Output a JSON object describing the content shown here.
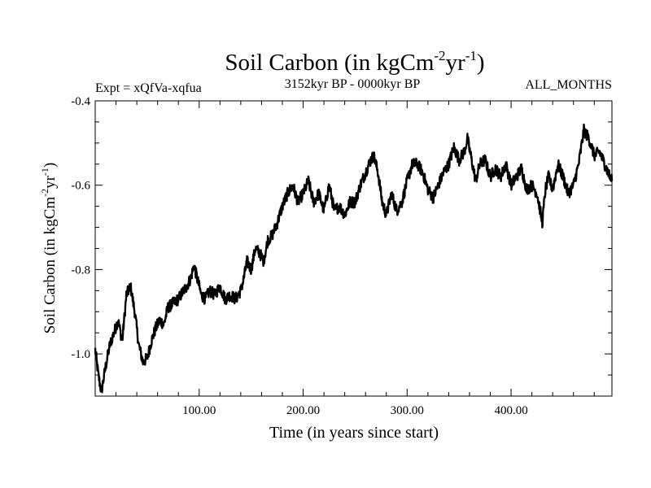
{
  "header": {
    "title_main": "Soil Carbon (in kgCm",
    "title_sup1": "-2",
    "title_mid": "yr",
    "title_sup2": "-1",
    "title_close": ")",
    "expt": "Expt = xQfVa-xqfua",
    "period": "3152kyr BP - 0000kyr BP",
    "months": "ALL_MONTHS"
  },
  "chart_data": {
    "type": "line",
    "title": "Soil Carbon (in kgCm-2yr-1)",
    "xlabel": "Time (in years since start)",
    "ylabel": "Soil Carbon (in kgCm-2yr-1)",
    "xlim": [
      0,
      497
    ],
    "ylim": [
      -1.1,
      -0.4
    ],
    "x_ticks": [
      100,
      200,
      300,
      400
    ],
    "x_tick_labels": [
      "100.00",
      "200.00",
      "300.00",
      "400.00"
    ],
    "y_ticks": [
      -0.4,
      -0.6,
      -0.8,
      -1.0
    ],
    "y_tick_labels": [
      "-0.4",
      "-0.6",
      "-0.8",
      "-1.0"
    ],
    "grid": false,
    "line_color": "#000000",
    "series": [
      {
        "name": "Soil Carbon",
        "x": [
          0,
          3,
          6,
          10,
          14,
          18,
          22,
          26,
          30,
          34,
          38,
          42,
          46,
          50,
          54,
          58,
          62,
          66,
          70,
          75,
          80,
          85,
          88,
          92,
          95,
          98,
          102,
          106,
          110,
          115,
          120,
          125,
          130,
          135,
          140,
          143,
          146,
          150,
          154,
          158,
          162,
          166,
          170,
          175,
          180,
          185,
          190,
          195,
          200,
          205,
          210,
          215,
          220,
          225,
          230,
          235,
          240,
          245,
          250,
          255,
          260,
          265,
          268,
          272,
          276,
          280,
          285,
          290,
          295,
          300,
          305,
          310,
          315,
          320,
          325,
          330,
          335,
          340,
          345,
          350,
          355,
          358,
          362,
          366,
          370,
          375,
          380,
          385,
          390,
          395,
          400,
          405,
          410,
          415,
          420,
          425,
          428,
          430,
          433,
          436,
          440,
          445,
          450,
          455,
          460,
          465,
          470,
          475,
          480,
          485,
          490,
          495,
          497
        ],
        "values": [
          -0.99,
          -1.05,
          -1.09,
          -1.03,
          -0.98,
          -0.95,
          -0.92,
          -0.97,
          -0.86,
          -0.84,
          -0.9,
          -0.98,
          -1.02,
          -1.01,
          -0.97,
          -0.94,
          -0.92,
          -0.93,
          -0.89,
          -0.88,
          -0.87,
          -0.85,
          -0.84,
          -0.82,
          -0.79,
          -0.82,
          -0.86,
          -0.87,
          -0.85,
          -0.86,
          -0.84,
          -0.87,
          -0.86,
          -0.87,
          -0.85,
          -0.82,
          -0.78,
          -0.8,
          -0.75,
          -0.76,
          -0.78,
          -0.73,
          -0.72,
          -0.69,
          -0.65,
          -0.62,
          -0.6,
          -0.64,
          -0.62,
          -0.59,
          -0.64,
          -0.62,
          -0.66,
          -0.6,
          -0.66,
          -0.65,
          -0.67,
          -0.64,
          -0.64,
          -0.6,
          -0.57,
          -0.54,
          -0.53,
          -0.57,
          -0.64,
          -0.67,
          -0.62,
          -0.66,
          -0.64,
          -0.59,
          -0.55,
          -0.55,
          -0.57,
          -0.61,
          -0.63,
          -0.6,
          -0.57,
          -0.55,
          -0.51,
          -0.54,
          -0.52,
          -0.49,
          -0.54,
          -0.59,
          -0.55,
          -0.54,
          -0.58,
          -0.56,
          -0.58,
          -0.55,
          -0.6,
          -0.58,
          -0.56,
          -0.61,
          -0.6,
          -0.62,
          -0.66,
          -0.69,
          -0.61,
          -0.58,
          -0.61,
          -0.55,
          -0.58,
          -0.62,
          -0.6,
          -0.55,
          -0.47,
          -0.49,
          -0.53,
          -0.52,
          -0.55,
          -0.58,
          -0.59
        ]
      }
    ]
  }
}
